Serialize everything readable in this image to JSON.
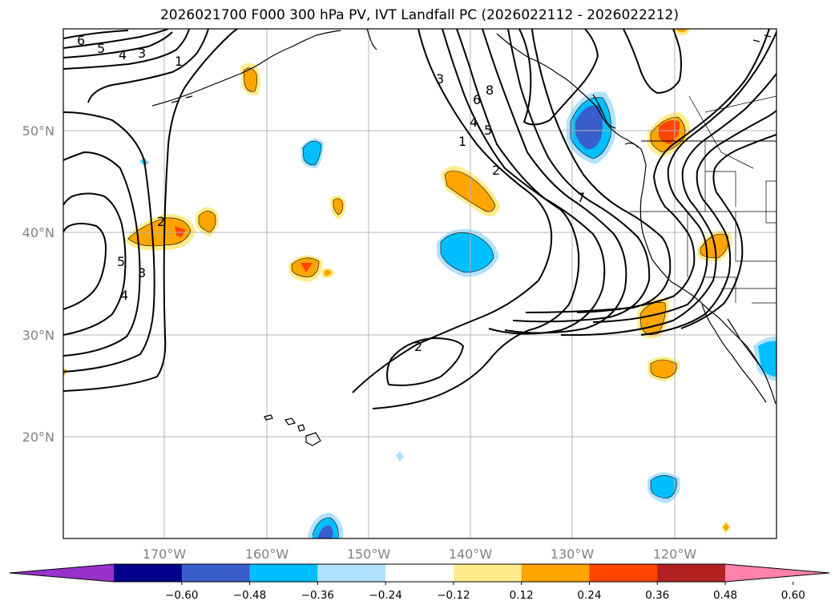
{
  "title": "2026021700 F000 300 hPa PV, IVT Landfall PC (2026022112 - 2026022212)",
  "lat_labels": [
    "50°N",
    "40°N",
    "30°N",
    "20°N"
  ],
  "lon_labels": [
    "170°W",
    "160°W",
    "150°W",
    "140°W",
    "130°W",
    "120°W"
  ],
  "colorbar": {
    "colors": [
      "#9932cc",
      "#00008b",
      "#3a5fcd",
      "#00bfff",
      "#b0e2ff",
      "#ffffff",
      "#ffec8b",
      "#ffa500",
      "#ff4500",
      "#b22222",
      "#ff82ab"
    ],
    "tick_labels": [
      "−0.60",
      "−0.48",
      "−0.36",
      "−0.24",
      "−0.12",
      "0.12",
      "0.24",
      "0.36",
      "0.48",
      "0.60"
    ]
  },
  "contour_labels": [
    "6",
    "5",
    "4",
    "3",
    "1",
    "3",
    "8",
    "6",
    "4",
    "5",
    "1",
    "2",
    "7",
    "2",
    "5",
    "3",
    "4",
    "2"
  ]
}
